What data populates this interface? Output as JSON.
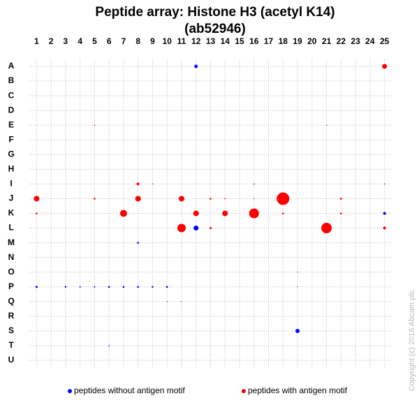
{
  "chart_data": {
    "type": "bubble",
    "title": "Peptide array:  Histone H3 (acetyl K14)",
    "subtitle": "(ab52946)",
    "copyright": "Copyright (c) 2016 Abcam plc.",
    "xlim": [
      0.5,
      25.5
    ],
    "xticks": [
      1,
      2,
      3,
      4,
      5,
      6,
      7,
      8,
      9,
      10,
      11,
      12,
      13,
      14,
      15,
      16,
      17,
      18,
      19,
      20,
      21,
      22,
      23,
      24,
      25
    ],
    "rows": [
      "A",
      "B",
      "C",
      "D",
      "E",
      "F",
      "G",
      "H",
      "I",
      "J",
      "K",
      "L",
      "M",
      "N",
      "O",
      "P",
      "Q",
      "R",
      "S",
      "T",
      "U"
    ],
    "grid": true,
    "series": [
      {
        "name": "peptides without antigen motif",
        "color": "#0000ff",
        "x": [
          12,
          21,
          9,
          16,
          16,
          25,
          12,
          8,
          19,
          1,
          3,
          4,
          5,
          6,
          7,
          8,
          9,
          10,
          19,
          10,
          11,
          19,
          6
        ],
        "y": [
          "A",
          "E",
          "I",
          "I",
          "J",
          "K",
          "L",
          "M",
          "O",
          "P",
          "P",
          "P",
          "P",
          "P",
          "P",
          "P",
          "P",
          "P",
          "P",
          "Q",
          "Q",
          "S",
          "T"
        ],
        "sizes": [
          2.5,
          0.6,
          0.6,
          0.8,
          0.6,
          2,
          3.5,
          1.3,
          0.6,
          1.5,
          1.2,
          1,
          1,
          1.3,
          1.3,
          1.3,
          1.2,
          1.3,
          0.6,
          0.6,
          0.6,
          3,
          0.8
        ]
      },
      {
        "name": "peptides with antigen motif",
        "color": "#ff0000",
        "x": [
          25,
          5,
          8,
          25,
          1,
          5,
          8,
          11,
          13,
          14,
          18,
          22,
          1,
          7,
          12,
          14,
          16,
          18,
          22,
          11,
          13,
          21,
          25
        ],
        "y": [
          "A",
          "E",
          "I",
          "I",
          "J",
          "J",
          "J",
          "J",
          "J",
          "J",
          "J",
          "J",
          "K",
          "K",
          "K",
          "K",
          "K",
          "K",
          "K",
          "L",
          "L",
          "L",
          "L"
        ],
        "sizes": [
          3.5,
          0.8,
          2,
          0.8,
          4,
          1.3,
          4,
          4,
          1.3,
          0.8,
          9,
          1.3,
          1.3,
          5,
          4,
          4,
          7,
          1.3,
          1.3,
          6,
          1.5,
          7.5,
          2
        ]
      }
    ]
  }
}
